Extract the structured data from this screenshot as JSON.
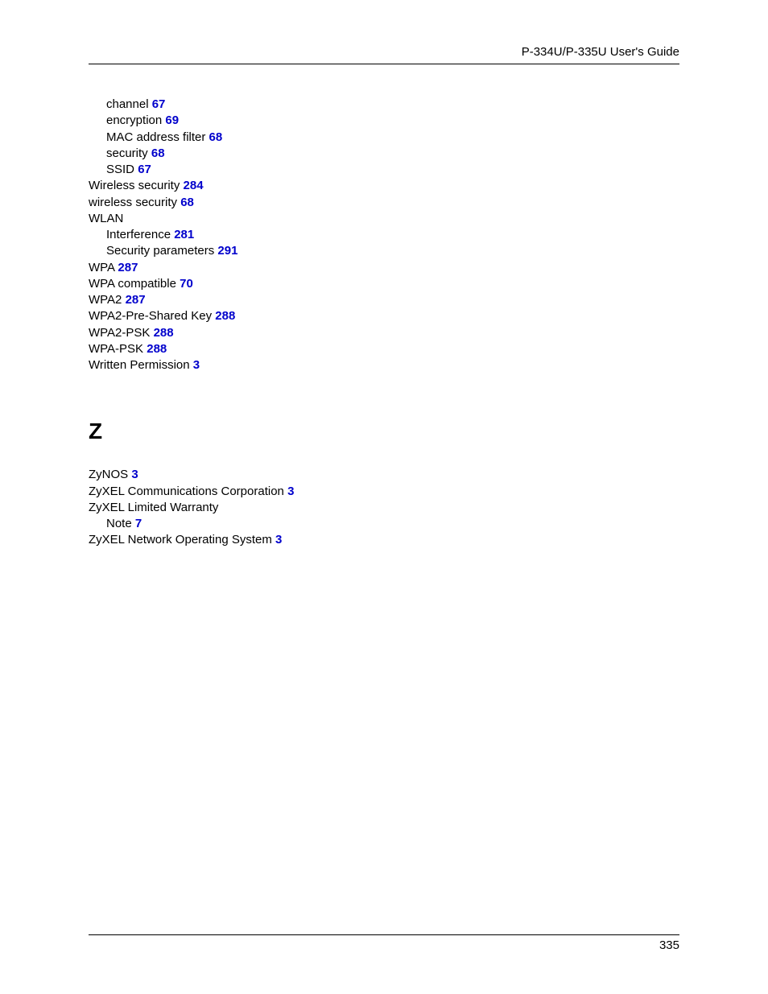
{
  "header_title": "P-334U/P-335U User's Guide",
  "page_number": "335",
  "sections": [
    {
      "heading": null,
      "entries": [
        {
          "text": "channel",
          "page": "67",
          "indent": 1
        },
        {
          "text": "encryption",
          "page": "69",
          "indent": 1
        },
        {
          "text": "MAC address filter",
          "page": "68",
          "indent": 1
        },
        {
          "text": "security",
          "page": "68",
          "indent": 1
        },
        {
          "text": "SSID",
          "page": "67",
          "indent": 1
        },
        {
          "text": "Wireless security",
          "page": "284",
          "indent": 0
        },
        {
          "text": "wireless security",
          "page": "68",
          "indent": 0
        },
        {
          "text": "WLAN",
          "page": null,
          "indent": 0
        },
        {
          "text": "Interference",
          "page": "281",
          "indent": 1
        },
        {
          "text": "Security parameters",
          "page": "291",
          "indent": 1
        },
        {
          "text": "WPA",
          "page": "287",
          "indent": 0
        },
        {
          "text": "WPA compatible",
          "page": "70",
          "indent": 0
        },
        {
          "text": "WPA2",
          "page": "287",
          "indent": 0
        },
        {
          "text": "WPA2-Pre-Shared Key",
          "page": "288",
          "indent": 0
        },
        {
          "text": "WPA2-PSK",
          "page": "288",
          "indent": 0
        },
        {
          "text": "WPA-PSK",
          "page": "288",
          "indent": 0
        },
        {
          "text": "Written Permission",
          "page": "3",
          "indent": 0
        }
      ]
    },
    {
      "heading": "Z",
      "entries": [
        {
          "text": "ZyNOS",
          "page": "3",
          "indent": 0
        },
        {
          "text": "ZyXEL Communications Corporation",
          "page": "3",
          "indent": 0
        },
        {
          "text": "ZyXEL Limited Warranty",
          "page": null,
          "indent": 0
        },
        {
          "text": "Note",
          "page": "7",
          "indent": 1
        },
        {
          "text": "ZyXEL Network Operating System",
          "page": "3",
          "indent": 0
        }
      ]
    }
  ]
}
